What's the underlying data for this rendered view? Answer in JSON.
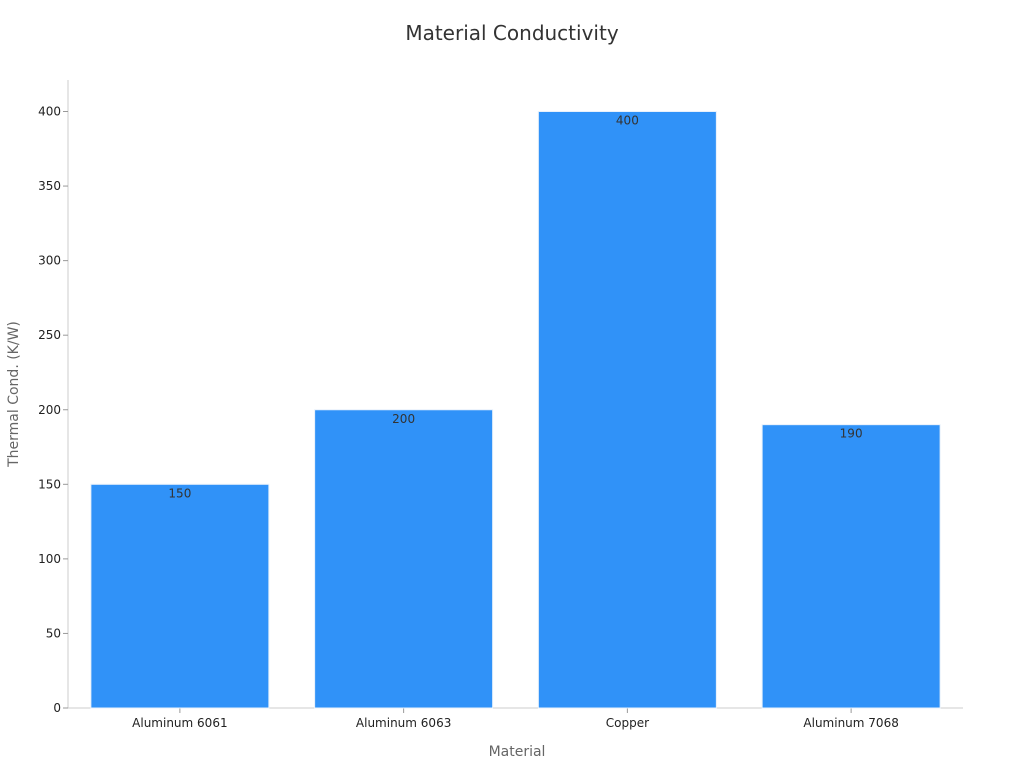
{
  "chart_data": {
    "type": "bar",
    "title": "Material Conductivity",
    "xlabel": "Material",
    "ylabel": "Thermal Cond. (K/W)",
    "categories": [
      "Aluminum 6061",
      "Aluminum 6063",
      "Copper",
      "Aluminum 7068"
    ],
    "values": [
      150,
      200,
      400,
      190
    ],
    "data_labels": [
      "150",
      "200",
      "400",
      "190"
    ],
    "ylim": [
      0,
      420
    ],
    "yticks": [
      0,
      50,
      100,
      150,
      200,
      250,
      300,
      350,
      400
    ],
    "ytick_labels": [
      "0",
      "50",
      "100",
      "150",
      "200",
      "250",
      "300",
      "350",
      "400"
    ],
    "grid": false,
    "legend": false,
    "bar_color": "#3092f8"
  }
}
